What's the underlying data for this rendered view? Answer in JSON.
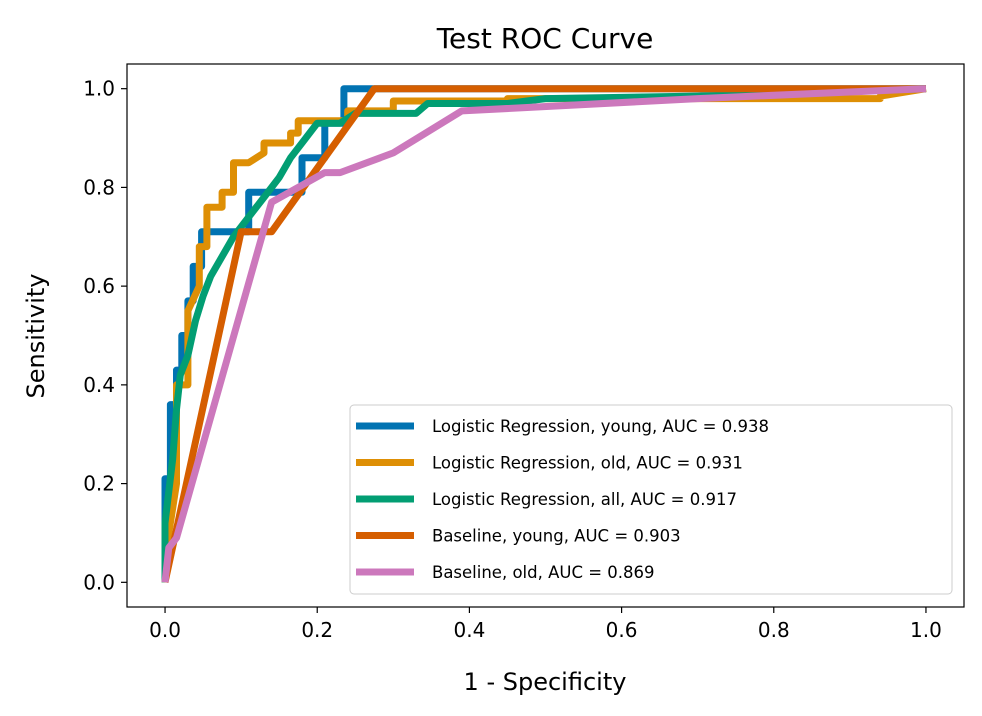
{
  "chart_data": {
    "type": "line",
    "title": "Test ROC Curve",
    "xlabel": "1 - Specificity",
    "ylabel": "Sensitivity",
    "xlim": [
      -0.05,
      1.05
    ],
    "ylim": [
      -0.05,
      1.05
    ],
    "xticks": [
      "0.0",
      "0.2",
      "0.4",
      "0.6",
      "0.8",
      "1.0"
    ],
    "yticks": [
      "0.0",
      "0.2",
      "0.4",
      "0.6",
      "0.8",
      "1.0"
    ],
    "legend_position": "lower-right",
    "grid": false,
    "series": [
      {
        "name": "Logistic Regression, young, AUC = 0.938",
        "color": "#0173b2",
        "points": [
          [
            0,
            0
          ],
          [
            0,
            0.21
          ],
          [
            0.007,
            0.21
          ],
          [
            0.007,
            0.36
          ],
          [
            0.015,
            0.36
          ],
          [
            0.015,
            0.43
          ],
          [
            0.022,
            0.43
          ],
          [
            0.022,
            0.5
          ],
          [
            0.03,
            0.5
          ],
          [
            0.03,
            0.57
          ],
          [
            0.037,
            0.57
          ],
          [
            0.037,
            0.64
          ],
          [
            0.048,
            0.64
          ],
          [
            0.048,
            0.71
          ],
          [
            0.11,
            0.71
          ],
          [
            0.11,
            0.79
          ],
          [
            0.18,
            0.79
          ],
          [
            0.18,
            0.86
          ],
          [
            0.21,
            0.86
          ],
          [
            0.21,
            0.93
          ],
          [
            0.235,
            0.93
          ],
          [
            0.235,
            1.0
          ],
          [
            1.0,
            1.0
          ]
        ]
      },
      {
        "name": "Logistic Regression, old, AUC = 0.931",
        "color": "#de8f05",
        "points": [
          [
            0,
            0
          ],
          [
            0,
            0.05
          ],
          [
            0.015,
            0.2
          ],
          [
            0.015,
            0.4
          ],
          [
            0.03,
            0.4
          ],
          [
            0.03,
            0.55
          ],
          [
            0.045,
            0.6
          ],
          [
            0.045,
            0.68
          ],
          [
            0.055,
            0.68
          ],
          [
            0.055,
            0.76
          ],
          [
            0.075,
            0.76
          ],
          [
            0.075,
            0.79
          ],
          [
            0.09,
            0.79
          ],
          [
            0.09,
            0.85
          ],
          [
            0.11,
            0.85
          ],
          [
            0.13,
            0.87
          ],
          [
            0.13,
            0.89
          ],
          [
            0.165,
            0.89
          ],
          [
            0.165,
            0.91
          ],
          [
            0.175,
            0.91
          ],
          [
            0.175,
            0.935
          ],
          [
            0.24,
            0.935
          ],
          [
            0.24,
            0.955
          ],
          [
            0.3,
            0.955
          ],
          [
            0.3,
            0.975
          ],
          [
            0.45,
            0.975
          ],
          [
            0.45,
            0.98
          ],
          [
            0.94,
            0.98
          ],
          [
            0.94,
            0.985
          ],
          [
            1.0,
            1.0
          ]
        ]
      },
      {
        "name": "Logistic Regression, all, AUC = 0.917",
        "color": "#029e73",
        "points": [
          [
            0,
            0
          ],
          [
            0,
            0.12
          ],
          [
            0.01,
            0.25
          ],
          [
            0.015,
            0.35
          ],
          [
            0.02,
            0.42
          ],
          [
            0.03,
            0.46
          ],
          [
            0.04,
            0.53
          ],
          [
            0.05,
            0.58
          ],
          [
            0.06,
            0.62
          ],
          [
            0.075,
            0.66
          ],
          [
            0.09,
            0.7
          ],
          [
            0.11,
            0.74
          ],
          [
            0.13,
            0.78
          ],
          [
            0.15,
            0.82
          ],
          [
            0.165,
            0.86
          ],
          [
            0.18,
            0.89
          ],
          [
            0.2,
            0.93
          ],
          [
            0.23,
            0.93
          ],
          [
            0.25,
            0.95
          ],
          [
            0.33,
            0.95
          ],
          [
            0.345,
            0.97
          ],
          [
            0.45,
            0.97
          ],
          [
            0.5,
            0.98
          ],
          [
            0.7,
            0.985
          ],
          [
            1.0,
            1.0
          ]
        ]
      },
      {
        "name": "Baseline, young, AUC = 0.903",
        "color": "#d55e00",
        "points": [
          [
            0,
            0
          ],
          [
            0.1,
            0.71
          ],
          [
            0.14,
            0.71
          ],
          [
            0.275,
            1.0
          ],
          [
            1.0,
            1.0
          ]
        ]
      },
      {
        "name": "Baseline, old, AUC = 0.869",
        "color": "#cc78bc",
        "points": [
          [
            0,
            0
          ],
          [
            0.005,
            0.07
          ],
          [
            0.015,
            0.09
          ],
          [
            0.14,
            0.77
          ],
          [
            0.21,
            0.83
          ],
          [
            0.23,
            0.83
          ],
          [
            0.3,
            0.87
          ],
          [
            0.39,
            0.955
          ],
          [
            0.7,
            0.98
          ],
          [
            1.0,
            1.0
          ]
        ]
      }
    ]
  }
}
